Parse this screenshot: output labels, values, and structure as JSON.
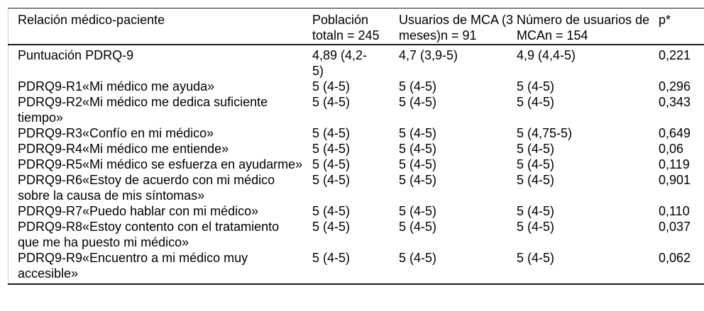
{
  "table": {
    "columns": [
      {
        "label": "Relación médico-paciente"
      },
      {
        "label": "Población\ntotaln = 245"
      },
      {
        "label": "Usuarios de MCA (3\nmeses)n = 91"
      },
      {
        "label": "Número de usuarios de\nMCAn = 154"
      },
      {
        "label": "p*"
      }
    ],
    "rows": [
      {
        "cells": [
          "Puntuación PDRQ-9",
          "4,89 (4,2-\n5)",
          "4,7 (3,9-5)",
          "4,9 (4,4-5)",
          "0,221"
        ]
      },
      {
        "cells": [
          "PDRQ9-R1«Mi médico me ayuda»",
          "5 (4-5)",
          "5 (4-5)",
          "5 (4-5)",
          "0,296"
        ]
      },
      {
        "cells": [
          "PDRQ9-R2«Mi médico me dedica suficiente tiempo»",
          "5 (4-5)",
          "5 (4-5)",
          "5 (4-5)",
          "0,343"
        ]
      },
      {
        "cells": [
          "PDRQ9-R3«Confío en mi médico»",
          "5 (4-5)",
          "5 (4-5)",
          "5 (4,75-5)",
          "0,649"
        ]
      },
      {
        "cells": [
          "PDRQ9-R4«Mi médico me entiende»",
          "5 (4-5)",
          "5 (4-5)",
          "5 (4-5)",
          "0,06"
        ]
      },
      {
        "cells": [
          "PDRQ9-R5«Mi médico se esfuerza en ayudarme»",
          "5 (4-5)",
          "5 (4-5)",
          "5 (4-5)",
          "0,119"
        ]
      },
      {
        "cells": [
          "PDRQ9-R6«Estoy de acuerdo con mi médico sobre la causa de mis síntomas»",
          "5 (4-5)",
          "5 (4-5)",
          "5 (4-5)",
          "0,901"
        ]
      },
      {
        "cells": [
          "PDRQ9-R7«Puedo hablar con mi médico»",
          "5 (4-5)",
          "5 (4-5)",
          "5 (4-5)",
          "0,110"
        ]
      },
      {
        "cells": [
          "PDRQ9-R8«Estoy contento con el tratamiento que me ha puesto mi médico»",
          "5 (4-5)",
          "5 (4-5)",
          "5 (4-5)",
          "0,037"
        ]
      },
      {
        "cells": [
          "PDRQ9-R9«Encuentro a mi médico muy accesible»",
          "5 (4-5)",
          "5 (4-5)",
          "5 (4-5)",
          "0,062"
        ]
      }
    ],
    "colors": {
      "rule_dark": "#1a1a1a",
      "rule_light": "#cfcfcf",
      "text": "#000000",
      "background": "#ffffff"
    }
  }
}
